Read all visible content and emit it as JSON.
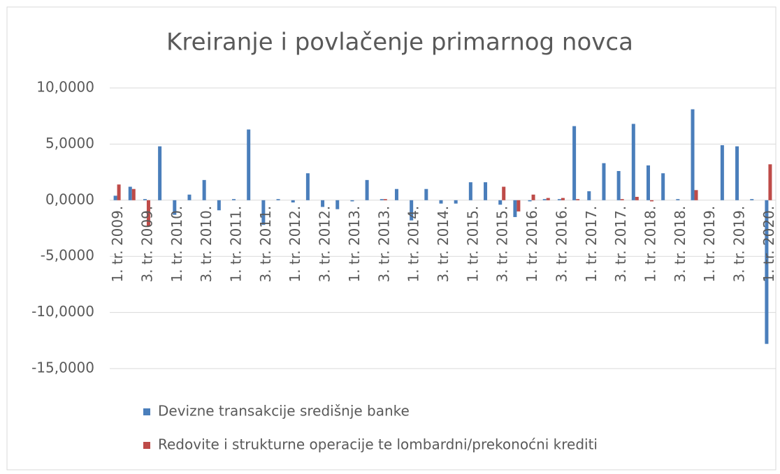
{
  "chart_data": {
    "type": "bar",
    "title": "Kreiranje i povlačenje primarnog novca",
    "categories": [
      "1. tr. 2009.",
      null,
      "3. tr. 2009.",
      null,
      "1. tr. 2010.",
      null,
      "3. tr. 2010.",
      null,
      "1. tr. 2011.",
      null,
      "3. tr. 2011.",
      null,
      "1. tr. 2012.",
      null,
      "3. tr. 2012.",
      null,
      "1. tr. 2013.",
      null,
      "3. tr. 2013.",
      null,
      "1. tr. 2014.",
      null,
      "3. tr. 2014.",
      null,
      "1. tr. 2015.",
      null,
      "3. tr. 2015.",
      null,
      "1. tr. 2016.",
      null,
      "3. tr. 2016.",
      null,
      "1. tr. 2017.",
      null,
      "3. tr. 2017.",
      null,
      "1. tr. 2018.",
      null,
      "3. tr. 2018.",
      null,
      "1. tr. 2019.",
      null,
      "3. tr. 2019.",
      null,
      "1. tr. 2020."
    ],
    "series": [
      {
        "name": "Devizne transakcije središnje banke",
        "color": "#4a7ebb",
        "values": [
          0.4,
          1.2,
          0.1,
          4.8,
          -1.3,
          0.5,
          1.8,
          -0.9,
          0.1,
          6.3,
          -2.2,
          0.1,
          -0.2,
          2.4,
          -0.6,
          -0.8,
          -0.1,
          1.8,
          0.1,
          1.0,
          -1.8,
          1.0,
          -0.3,
          -0.3,
          1.6,
          1.6,
          -0.4,
          -1.5,
          -0.1,
          0.1,
          0.1,
          6.6,
          0.8,
          3.3,
          2.6,
          6.8,
          3.1,
          2.4,
          0.1,
          8.1,
          0,
          4.9,
          4.8,
          0.1,
          -12.8
        ]
      },
      {
        "name": "Redovite i strukturne operacije te lombardni/prekonoćni krediti",
        "color": "#be4b48",
        "values": [
          1.4,
          1.0,
          -2.3,
          0,
          0,
          0,
          0,
          0,
          0,
          0,
          0,
          0,
          0,
          0,
          0,
          0,
          0,
          0,
          0.1,
          0,
          0,
          0,
          0,
          0,
          0,
          0,
          1.2,
          -1.0,
          0.5,
          0.2,
          0.2,
          0.1,
          0,
          0,
          0.1,
          0.3,
          -0.1,
          0,
          0,
          0.9,
          0,
          0,
          0,
          0,
          3.2
        ]
      }
    ],
    "ylim": [
      -15,
      10
    ],
    "yticks": [
      {
        "value": -15,
        "label": "-15,0000"
      },
      {
        "value": -10,
        "label": "-10,0000"
      },
      {
        "value": -5,
        "label": "-5,0000"
      },
      {
        "value": 0,
        "label": "0,0000"
      },
      {
        "value": 5,
        "label": "5,0000"
      },
      {
        "value": 10,
        "label": "10,0000"
      }
    ],
    "grid": true,
    "legend": "bottom"
  }
}
